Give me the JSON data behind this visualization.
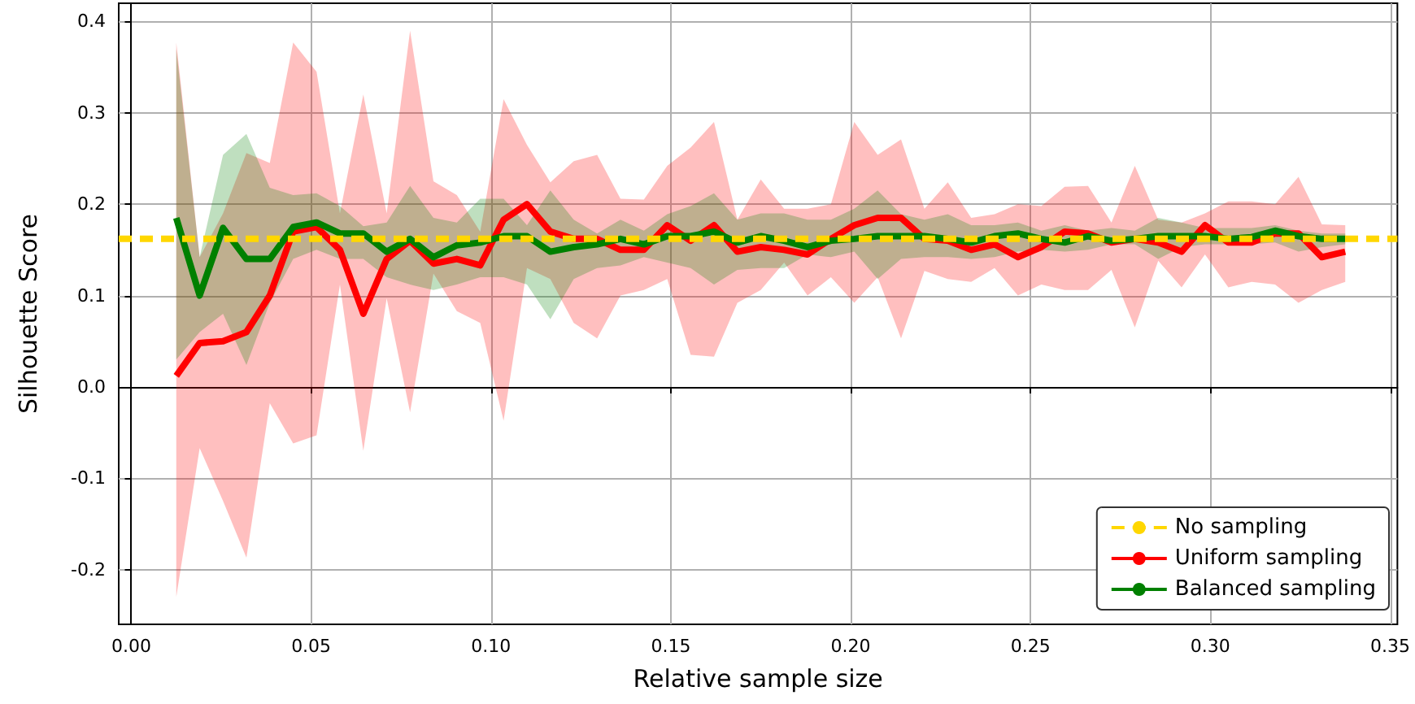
{
  "chart_data": {
    "type": "line",
    "xlabel": "Relative sample size",
    "ylabel": "Silhouette Score",
    "xlim": [
      -0.0035,
      0.352
    ],
    "ylim": [
      -0.26,
      0.42
    ],
    "xticks": [
      {
        "value": 0,
        "label": "0.00"
      },
      {
        "value": 0.05,
        "label": "0.05"
      },
      {
        "value": 0.1,
        "label": "0.10"
      },
      {
        "value": 0.15,
        "label": "0.15"
      },
      {
        "value": 0.2,
        "label": "0.20"
      },
      {
        "value": 0.25,
        "label": "0.25"
      },
      {
        "value": 0.3,
        "label": "0.30"
      },
      {
        "value": 0.35,
        "label": "0.35"
      }
    ],
    "yticks": [
      -0.2,
      -0.1,
      {
        "value": 0,
        "label": "0.0"
      },
      0.1,
      0.2,
      0.3,
      0.4
    ],
    "grid": true,
    "legend": "bottom right",
    "line_style": "solid",
    "x": [
      0.0125,
      0.019,
      0.0255,
      0.032,
      0.0385,
      0.045,
      0.0515,
      0.058,
      0.0645,
      0.071,
      0.0775,
      0.084,
      0.0905,
      0.097,
      0.1035,
      0.11,
      0.1165,
      0.123,
      0.1295,
      0.136,
      0.1425,
      0.149,
      0.1555,
      0.162,
      0.1685,
      0.175,
      0.1815,
      0.188,
      0.1945,
      0.201,
      0.2075,
      0.214,
      0.2205,
      0.227,
      0.2335,
      0.24,
      0.2465,
      0.253,
      0.2595,
      0.266,
      0.2725,
      0.279,
      0.2855,
      0.292,
      0.2985,
      0.305,
      0.3115,
      0.318,
      0.3245,
      0.331,
      0.3375
    ],
    "series": [
      {
        "name": "No sampling",
        "color": "#ffd700",
        "line_style": "dashed",
        "x": [
          -0.0035,
          0.352
        ],
        "values": [
          0.162,
          0.162
        ]
      },
      {
        "name": "Uniform sampling",
        "color": "#ff0000",
        "values": [
          0.012,
          0.048,
          0.05,
          0.06,
          0.1,
          0.17,
          0.175,
          0.15,
          0.08,
          0.14,
          0.16,
          0.135,
          0.14,
          0.133,
          0.183,
          0.2,
          0.17,
          0.162,
          0.162,
          0.15,
          0.15,
          0.177,
          0.16,
          0.177,
          0.148,
          0.153,
          0.15,
          0.145,
          0.162,
          0.177,
          0.185,
          0.185,
          0.162,
          0.16,
          0.15,
          0.156,
          0.142,
          0.153,
          0.17,
          0.168,
          0.158,
          0.162,
          0.158,
          0.148,
          0.177,
          0.158,
          0.158,
          0.168,
          0.168,
          0.142,
          0.148
        ],
        "upper": [
          0.377,
          0.142,
          0.19,
          0.256,
          0.245,
          0.377,
          0.345,
          0.19,
          0.32,
          0.19,
          0.39,
          0.225,
          0.21,
          0.17,
          0.315,
          0.265,
          0.224,
          0.247,
          0.254,
          0.206,
          0.205,
          0.242,
          0.262,
          0.29,
          0.183,
          0.227,
          0.195,
          0.195,
          0.2,
          0.29,
          0.254,
          0.271,
          0.195,
          0.224,
          0.185,
          0.189,
          0.2,
          0.198,
          0.219,
          0.22,
          0.18,
          0.242,
          0.183,
          0.18,
          0.19,
          0.203,
          0.203,
          0.2,
          0.23,
          0.178,
          0.177
        ],
        "lower": [
          -0.23,
          -0.067,
          -0.125,
          -0.187,
          -0.018,
          -0.062,
          -0.053,
          0.112,
          -0.07,
          0.097,
          -0.028,
          0.124,
          0.083,
          0.07,
          -0.037,
          0.13,
          0.118,
          0.07,
          0.053,
          0.1,
          0.106,
          0.118,
          0.035,
          0.033,
          0.092,
          0.106,
          0.136,
          0.1,
          0.12,
          0.092,
          0.12,
          0.053,
          0.127,
          0.118,
          0.115,
          0.13,
          0.1,
          0.112,
          0.106,
          0.106,
          0.128,
          0.065,
          0.138,
          0.109,
          0.145,
          0.109,
          0.115,
          0.112,
          0.092,
          0.106,
          0.115
        ]
      },
      {
        "name": "Balanced sampling",
        "color": "#008000",
        "values": [
          0.185,
          0.1,
          0.174,
          0.14,
          0.14,
          0.175,
          0.18,
          0.168,
          0.168,
          0.148,
          0.162,
          0.142,
          0.155,
          0.158,
          0.165,
          0.165,
          0.148,
          0.153,
          0.156,
          0.162,
          0.156,
          0.165,
          0.165,
          0.17,
          0.158,
          0.165,
          0.16,
          0.153,
          0.16,
          0.162,
          0.165,
          0.165,
          0.165,
          0.162,
          0.158,
          0.165,
          0.168,
          0.162,
          0.158,
          0.165,
          0.16,
          0.162,
          0.165,
          0.165,
          0.165,
          0.162,
          0.164,
          0.171,
          0.165,
          0.162,
          0.162
        ],
        "upper": [
          0.37,
          0.142,
          0.254,
          0.277,
          0.218,
          0.21,
          0.212,
          0.198,
          0.176,
          0.18,
          0.22,
          0.185,
          0.18,
          0.206,
          0.206,
          0.177,
          0.215,
          0.183,
          0.168,
          0.183,
          0.171,
          0.189,
          0.198,
          0.212,
          0.183,
          0.19,
          0.19,
          0.183,
          0.183,
          0.195,
          0.215,
          0.189,
          0.183,
          0.189,
          0.177,
          0.177,
          0.18,
          0.171,
          0.177,
          0.171,
          0.174,
          0.171,
          0.185,
          0.18,
          0.174,
          0.174,
          0.174,
          0.177,
          0.171,
          0.168,
          0.168
        ],
        "lower": [
          0.03,
          0.06,
          0.08,
          0.024,
          0.092,
          0.14,
          0.15,
          0.14,
          0.14,
          0.12,
          0.112,
          0.106,
          0.112,
          0.12,
          0.12,
          0.112,
          0.074,
          0.118,
          0.13,
          0.133,
          0.142,
          0.136,
          0.13,
          0.112,
          0.128,
          0.13,
          0.13,
          0.145,
          0.142,
          0.148,
          0.118,
          0.14,
          0.142,
          0.142,
          0.14,
          0.142,
          0.148,
          0.15,
          0.148,
          0.15,
          0.156,
          0.156,
          0.14,
          0.153,
          0.156,
          0.156,
          0.156,
          0.158,
          0.148,
          0.153,
          0.156
        ]
      }
    ]
  }
}
